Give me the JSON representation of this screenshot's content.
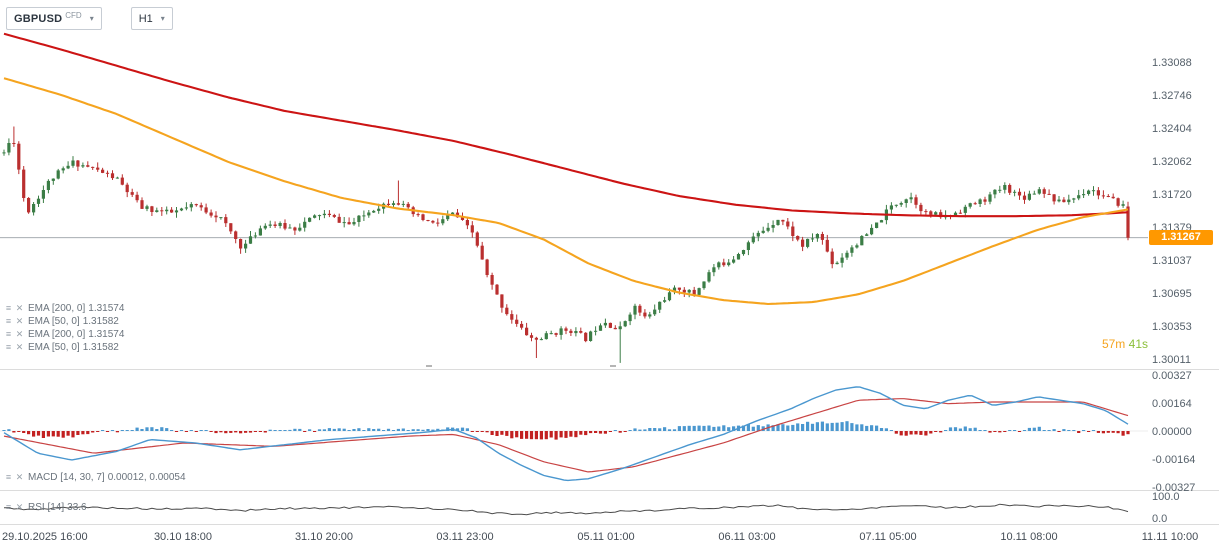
{
  "toolbar": {
    "symbol": "GBPUSD",
    "symbol_type": "CFD",
    "timeframe": "H1"
  },
  "legend": {
    "items": [
      {
        "name": "EMA [200, 0]",
        "value": "1.31574"
      },
      {
        "name": "EMA [50, 0]",
        "value": "1.31582"
      },
      {
        "name": "EMA [200, 0]",
        "value": "1.31574"
      },
      {
        "name": "EMA [50, 0]",
        "value": "1.31582"
      }
    ]
  },
  "macd_legend": {
    "name": "MACD [14, 30, 7]",
    "value": "0.00012, 0.00054"
  },
  "rsi_legend": {
    "name": "RSI [14]",
    "value": "33.6"
  },
  "countdown": {
    "minutes": "57m",
    "seconds": "41s"
  },
  "current_price": {
    "value": "1.31267"
  },
  "colors": {
    "candle_up": "#3b7d46",
    "candle_down": "#ba2f2f",
    "ema_200": "#cc1414",
    "ema_50": "#f5a41f",
    "macd_line": "#4a97cf",
    "macd_signal": "#c84444",
    "macd_hist_up": "#4a97cf",
    "macd_hist_down": "#c22020",
    "rsi_line": "#4a4a4a",
    "badge_bg": "#ff9800",
    "countdown_minutes": "#f5a41f",
    "countdown_seconds": "#8bbf3a"
  },
  "chart_data": [
    {
      "type": "candlestick",
      "title": "GBPUSD CFD H1",
      "price_axis_ticks": [
        "1.33088",
        "1.32746",
        "1.32404",
        "1.32062",
        "1.31720",
        "1.31379",
        "1.31037",
        "1.30695",
        "1.30353",
        "1.30011"
      ],
      "time_axis_ticks": [
        "29.10.2025 16:00",
        "30.10 18:00",
        "31.10 20:00",
        "03.11 23:00",
        "05.11 01:00",
        "06.11 03:00",
        "07.11 05:00",
        "10.11 08:00",
        "11.11 10:00"
      ],
      "current_price": 1.31267,
      "close_path": [
        [
          0.0,
          1.3215
        ],
        [
          0.008,
          1.3232
        ],
        [
          0.02,
          1.3152
        ],
        [
          0.042,
          1.3188
        ],
        [
          0.062,
          1.3205
        ],
        [
          0.08,
          1.3198
        ],
        [
          0.1,
          1.3188
        ],
        [
          0.122,
          1.3158
        ],
        [
          0.148,
          1.3152
        ],
        [
          0.17,
          1.316
        ],
        [
          0.192,
          1.3148
        ],
        [
          0.212,
          1.3116
        ],
        [
          0.232,
          1.3142
        ],
        [
          0.258,
          1.3136
        ],
        [
          0.282,
          1.3152
        ],
        [
          0.308,
          1.314
        ],
        [
          0.33,
          1.3158
        ],
        [
          0.348,
          1.3166
        ],
        [
          0.365,
          1.315
        ],
        [
          0.383,
          1.314
        ],
        [
          0.4,
          1.3152
        ],
        [
          0.418,
          1.313
        ],
        [
          0.43,
          1.3086
        ],
        [
          0.444,
          1.3054
        ],
        [
          0.458,
          1.3034
        ],
        [
          0.472,
          1.302
        ],
        [
          0.488,
          1.3028
        ],
        [
          0.503,
          1.3032
        ],
        [
          0.518,
          1.3022
        ],
        [
          0.533,
          1.3042
        ],
        [
          0.547,
          1.303
        ],
        [
          0.56,
          1.3056
        ],
        [
          0.572,
          1.3042
        ],
        [
          0.585,
          1.3062
        ],
        [
          0.6,
          1.3075
        ],
        [
          0.614,
          1.3068
        ],
        [
          0.63,
          1.3095
        ],
        [
          0.648,
          1.3105
        ],
        [
          0.665,
          1.3125
        ],
        [
          0.69,
          1.3148
        ],
        [
          0.71,
          1.3118
        ],
        [
          0.725,
          1.3132
        ],
        [
          0.738,
          1.3098
        ],
        [
          0.753,
          1.3116
        ],
        [
          0.77,
          1.3132
        ],
        [
          0.79,
          1.316
        ],
        [
          0.806,
          1.317
        ],
        [
          0.82,
          1.3152
        ],
        [
          0.838,
          1.3148
        ],
        [
          0.855,
          1.3158
        ],
        [
          0.872,
          1.3166
        ],
        [
          0.89,
          1.318
        ],
        [
          0.906,
          1.3168
        ],
        [
          0.922,
          1.3178
        ],
        [
          0.938,
          1.3163
        ],
        [
          0.952,
          1.3168
        ],
        [
          0.966,
          1.3178
        ],
        [
          0.98,
          1.3168
        ],
        [
          0.992,
          1.3162
        ],
        [
          1.0,
          1.3158
        ]
      ],
      "spike_lows": [
        [
          0.472,
          1.3002
        ],
        [
          0.547,
          1.2997
        ]
      ],
      "spike_highs": [
        [
          0.008,
          1.3242
        ],
        [
          0.352,
          1.3186
        ]
      ],
      "overlays": [
        {
          "id": "ema-200",
          "name": "EMA 200",
          "color": "#cc1414",
          "anchors": [
            [
              0.0,
              1.3338
            ],
            [
              0.05,
              1.3322
            ],
            [
              0.1,
              1.3305
            ],
            [
              0.15,
              1.3288
            ],
            [
              0.2,
              1.3272
            ],
            [
              0.25,
              1.3258
            ],
            [
              0.3,
              1.3248
            ],
            [
              0.35,
              1.3238
            ],
            [
              0.4,
              1.3227
            ],
            [
              0.45,
              1.3213
            ],
            [
              0.5,
              1.3198
            ],
            [
              0.55,
              1.3183
            ],
            [
              0.6,
              1.317
            ],
            [
              0.65,
              1.3161
            ],
            [
              0.7,
              1.3155
            ],
            [
              0.75,
              1.3152
            ],
            [
              0.8,
              1.315
            ],
            [
              0.85,
              1.3149
            ],
            [
              0.9,
              1.3149
            ],
            [
              0.95,
              1.315
            ],
            [
              1.0,
              1.3153
            ]
          ]
        },
        {
          "id": "ema-50",
          "name": "EMA 50",
          "color": "#f5a41f",
          "anchors": [
            [
              0.0,
              1.3292
            ],
            [
              0.05,
              1.3275
            ],
            [
              0.1,
              1.3255
            ],
            [
              0.15,
              1.323
            ],
            [
              0.2,
              1.3205
            ],
            [
              0.25,
              1.3185
            ],
            [
              0.3,
              1.3168
            ],
            [
              0.35,
              1.3157
            ],
            [
              0.4,
              1.315
            ],
            [
              0.44,
              1.3142
            ],
            [
              0.48,
              1.3125
            ],
            [
              0.52,
              1.31
            ],
            [
              0.56,
              1.3082
            ],
            [
              0.6,
              1.307
            ],
            [
              0.64,
              1.3062
            ],
            [
              0.68,
              1.3058
            ],
            [
              0.72,
              1.306
            ],
            [
              0.76,
              1.3068
            ],
            [
              0.8,
              1.3082
            ],
            [
              0.84,
              1.31
            ],
            [
              0.88,
              1.3118
            ],
            [
              0.92,
              1.3135
            ],
            [
              0.96,
              1.3148
            ],
            [
              1.0,
              1.3156
            ]
          ]
        }
      ]
    },
    {
      "type": "macd",
      "params": "[14, 30, 7]",
      "values": [
        0.00012,
        0.00054
      ],
      "axis_ticks": [
        "0.00327",
        "0.00164",
        "0.00000",
        "-0.00164",
        "-0.00327"
      ],
      "macd_line": [
        [
          0.0,
          -0.0001
        ],
        [
          0.03,
          -0.0013
        ],
        [
          0.06,
          -0.0017
        ],
        [
          0.1,
          -0.0012
        ],
        [
          0.13,
          -0.0005
        ],
        [
          0.17,
          -0.0007
        ],
        [
          0.21,
          -0.0011
        ],
        [
          0.25,
          -0.0008
        ],
        [
          0.29,
          -0.0005
        ],
        [
          0.33,
          -0.0003
        ],
        [
          0.37,
          -0.0001
        ],
        [
          0.4,
          0.0001
        ],
        [
          0.42,
          -0.0004
        ],
        [
          0.44,
          -0.0013
        ],
        [
          0.46,
          -0.002
        ],
        [
          0.48,
          -0.0026
        ],
        [
          0.5,
          -0.0029
        ],
        [
          0.52,
          -0.0028
        ],
        [
          0.55,
          -0.0022
        ],
        [
          0.58,
          -0.0015
        ],
        [
          0.61,
          -0.0008
        ],
        [
          0.64,
          -0.0002
        ],
        [
          0.67,
          0.0006
        ],
        [
          0.7,
          0.0013
        ],
        [
          0.72,
          0.0019
        ],
        [
          0.74,
          0.0024
        ],
        [
          0.76,
          0.0026
        ],
        [
          0.78,
          0.0022
        ],
        [
          0.8,
          0.0015
        ],
        [
          0.82,
          0.0013
        ],
        [
          0.84,
          0.0018
        ],
        [
          0.86,
          0.0021
        ],
        [
          0.88,
          0.0015
        ],
        [
          0.9,
          0.0017
        ],
        [
          0.92,
          0.002
        ],
        [
          0.94,
          0.0018
        ],
        [
          0.96,
          0.0016
        ],
        [
          0.98,
          0.0012
        ],
        [
          1.0,
          0.0004
        ]
      ],
      "signal_line": [
        [
          0.0,
          -0.0003
        ],
        [
          0.04,
          -0.0008
        ],
        [
          0.08,
          -0.0013
        ],
        [
          0.12,
          -0.001
        ],
        [
          0.16,
          -0.0007
        ],
        [
          0.2,
          -0.0008
        ],
        [
          0.24,
          -0.0009
        ],
        [
          0.28,
          -0.0007
        ],
        [
          0.32,
          -0.0005
        ],
        [
          0.36,
          -0.0003
        ],
        [
          0.4,
          -0.0002
        ],
        [
          0.44,
          -0.0008
        ],
        [
          0.48,
          -0.0018
        ],
        [
          0.52,
          -0.0024
        ],
        [
          0.56,
          -0.0021
        ],
        [
          0.6,
          -0.0014
        ],
        [
          0.64,
          -0.0007
        ],
        [
          0.68,
          0.0002
        ],
        [
          0.72,
          0.001
        ],
        [
          0.76,
          0.0018
        ],
        [
          0.8,
          0.0019
        ],
        [
          0.84,
          0.0016
        ],
        [
          0.88,
          0.0017
        ],
        [
          0.92,
          0.0017
        ],
        [
          0.96,
          0.0017
        ],
        [
          1.0,
          0.0009
        ]
      ]
    },
    {
      "type": "rsi",
      "params": "[14]",
      "value": 33.6,
      "axis_ticks": [
        "100.0",
        "0.0"
      ],
      "line": [
        [
          0.0,
          50
        ],
        [
          0.03,
          42
        ],
        [
          0.06,
          55
        ],
        [
          0.1,
          50
        ],
        [
          0.14,
          45
        ],
        [
          0.18,
          48
        ],
        [
          0.21,
          38
        ],
        [
          0.24,
          46
        ],
        [
          0.28,
          50
        ],
        [
          0.32,
          52
        ],
        [
          0.35,
          55
        ],
        [
          0.38,
          48
        ],
        [
          0.41,
          40
        ],
        [
          0.43,
          28
        ],
        [
          0.46,
          22
        ],
        [
          0.49,
          30
        ],
        [
          0.52,
          26
        ],
        [
          0.55,
          35
        ],
        [
          0.58,
          40
        ],
        [
          0.61,
          48
        ],
        [
          0.64,
          52
        ],
        [
          0.67,
          58
        ],
        [
          0.69,
          62
        ],
        [
          0.71,
          48
        ],
        [
          0.74,
          40
        ],
        [
          0.77,
          50
        ],
        [
          0.79,
          58
        ],
        [
          0.81,
          62
        ],
        [
          0.84,
          52
        ],
        [
          0.87,
          58
        ],
        [
          0.89,
          65
        ],
        [
          0.92,
          57
        ],
        [
          0.94,
          62
        ],
        [
          0.96,
          58
        ],
        [
          0.98,
          55
        ],
        [
          1.0,
          33.6
        ]
      ]
    }
  ]
}
